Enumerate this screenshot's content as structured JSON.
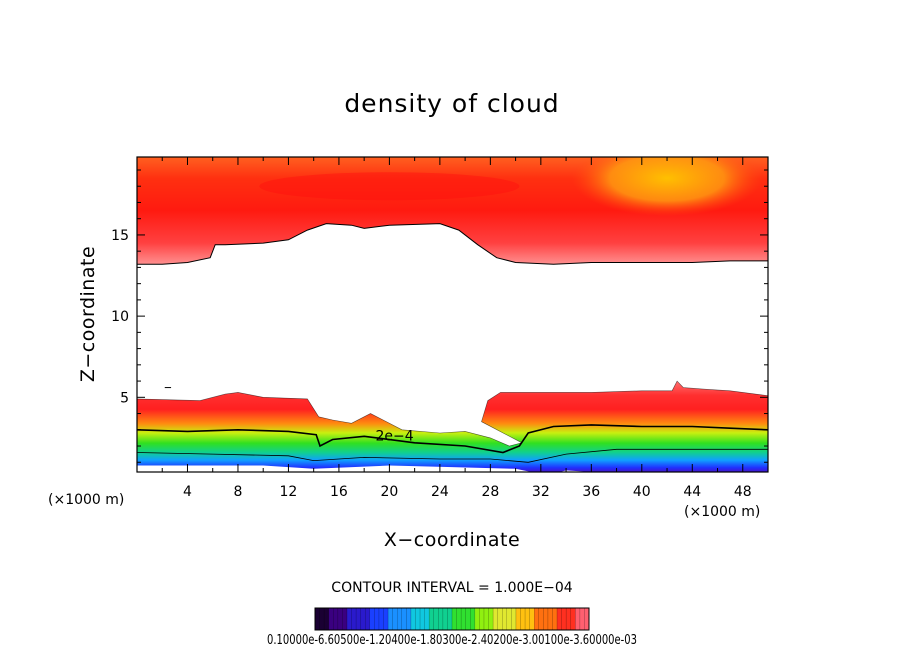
{
  "chart_data": {
    "type": "heatmap",
    "title": "density of cloud",
    "xlabel": "X−coordinate",
    "ylabel": "Z−coordinate",
    "x_unit_left": "(×1000 m)",
    "x_unit_right": "(×1000 m)",
    "xlim": [
      0,
      50
    ],
    "ylim": [
      0.4,
      19.8
    ],
    "x_ticks": [
      4,
      8,
      12,
      16,
      20,
      24,
      28,
      32,
      36,
      40,
      44,
      48
    ],
    "x_tick_labels": [
      "4",
      "8",
      "12",
      "16",
      "20",
      "24",
      "28",
      "32",
      "36",
      "40",
      "44",
      "48"
    ],
    "y_ticks": [
      5,
      10,
      15
    ],
    "y_tick_labels": [
      "5",
      "10",
      "15"
    ],
    "grid": false,
    "contour_label": "2e−4",
    "contour_interval_text": "CONTOUR INTERVAL = 1.000E−04",
    "colorbar": {
      "labels_text": "0.10000e-6.60500e-1.20400e-1.80300e-2.40200e-3.00100e-3.60000e-03",
      "colors": [
        "#1a0033",
        "#3a0080",
        "#2a1acc",
        "#1a40ff",
        "#1a90ff",
        "#10c8e0",
        "#10d090",
        "#30e030",
        "#90f010",
        "#e0e830",
        "#ffc010",
        "#ff7010",
        "#ff3020",
        "#ff6070"
      ]
    },
    "regions": {
      "upper_cloud": {
        "top_z": 19.8,
        "base_z_min": 13.2,
        "base_z_max": 15.8,
        "peak_density": "red-orange"
      },
      "lower_cloud": {
        "bottom_z": 0.4,
        "top_z_min": 1.8,
        "top_z_max": 6.0
      }
    }
  }
}
